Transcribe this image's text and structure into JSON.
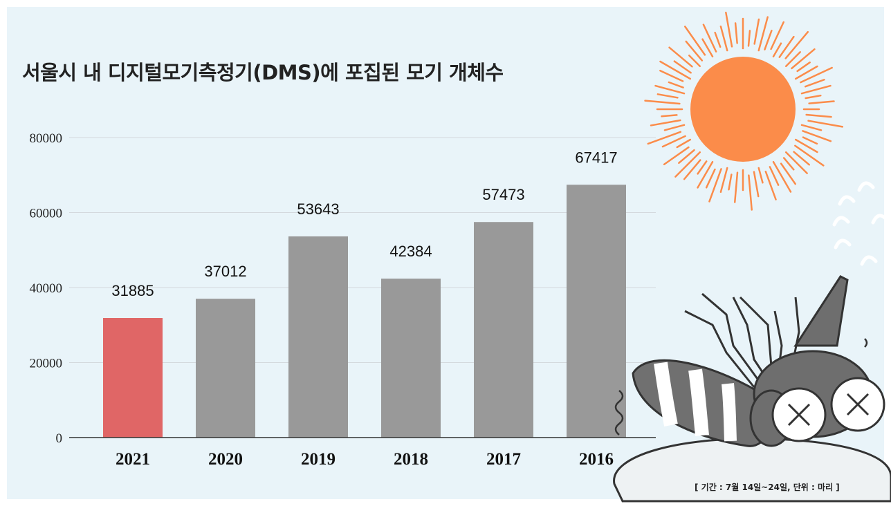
{
  "chart_data": {
    "type": "bar",
    "title": "서울시 내 디지털모기측정기(DMS)에 포집된 모기 개체수",
    "categories": [
      "2021",
      "2020",
      "2019",
      "2018",
      "2017",
      "2016"
    ],
    "values": [
      31885,
      37012,
      53643,
      42384,
      57473,
      67417
    ],
    "data_labels": [
      "31885",
      "37012",
      "53643",
      "42384",
      "57473",
      "67417"
    ],
    "ylim": [
      0,
      80000
    ],
    "yticks": [
      "0",
      "20000",
      "40000",
      "60000",
      "80000"
    ],
    "ytick_values": [
      0,
      20000,
      40000,
      60000,
      80000
    ],
    "grid": true,
    "highlight_category": "2021",
    "colors": {
      "highlight": "#e06666",
      "default": "#999999",
      "grid": "#d4d9dd",
      "background": "#e9f4f9"
    },
    "note": "[ 기간 : 7월 14일~24일,  단위 : 마리 ]"
  },
  "illustrations": {
    "sun": {
      "icon": "sun-icon",
      "color": "#fb8c4a"
    },
    "mosquito": {
      "icon": "dead-mosquito-icon",
      "color": "#6e6e6e"
    }
  }
}
